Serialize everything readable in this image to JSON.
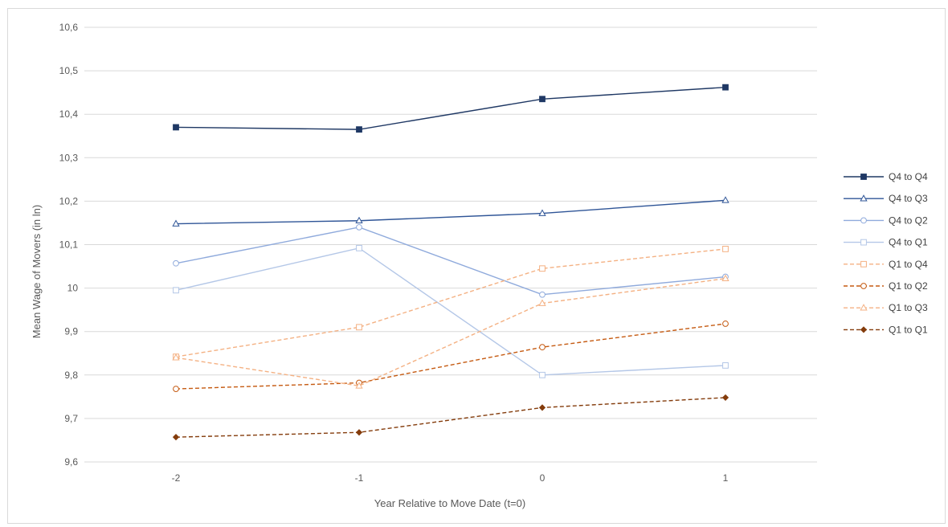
{
  "chart_data": {
    "type": "line",
    "title": "",
    "xlabel": "Year Relative to Move Date (t=0)",
    "ylabel": "Mean Wage of Movers (in ln)",
    "categories": [
      "-2",
      "-1",
      "0",
      "1"
    ],
    "ylim": [
      9.6,
      10.6
    ],
    "yticks": [
      "9,6",
      "9,7",
      "9,8",
      "9,9",
      "10",
      "10,1",
      "10,2",
      "10,3",
      "10,4",
      "10,5",
      "10,6"
    ],
    "grid": true,
    "legend_position": "right",
    "series": [
      {
        "name": "Q4 to Q4",
        "values": [
          10.37,
          10.365,
          10.435,
          10.462
        ],
        "color": "#1f3864",
        "dash": "solid",
        "marker": "square-filled"
      },
      {
        "name": "Q4 to Q3",
        "values": [
          10.148,
          10.155,
          10.172,
          10.202
        ],
        "color": "#2f5597",
        "dash": "solid",
        "marker": "triangle-open"
      },
      {
        "name": "Q4 to Q2",
        "values": [
          10.057,
          10.14,
          9.985,
          10.026
        ],
        "color": "#8faadc",
        "dash": "solid",
        "marker": "circle-open"
      },
      {
        "name": "Q4 to Q1",
        "values": [
          9.995,
          10.092,
          9.8,
          9.822
        ],
        "color": "#b4c7e7",
        "dash": "solid",
        "marker": "square-open"
      },
      {
        "name": "Q1 to Q4",
        "values": [
          9.842,
          9.91,
          10.045,
          10.09
        ],
        "color": "#f4b183",
        "dash": "dashed",
        "marker": "square-open"
      },
      {
        "name": "Q1 to Q2",
        "values": [
          9.768,
          9.782,
          9.864,
          9.918
        ],
        "color": "#c55a11",
        "dash": "dashed",
        "marker": "circle-open"
      },
      {
        "name": "Q1 to Q3",
        "values": [
          9.84,
          9.775,
          9.965,
          10.022
        ],
        "color": "#f4b183",
        "dash": "dashed",
        "marker": "triangle-open"
      },
      {
        "name": "Q1 to Q1",
        "values": [
          9.657,
          9.668,
          9.725,
          9.748
        ],
        "color": "#843c0c",
        "dash": "dashed",
        "marker": "diamond-filled"
      }
    ]
  }
}
